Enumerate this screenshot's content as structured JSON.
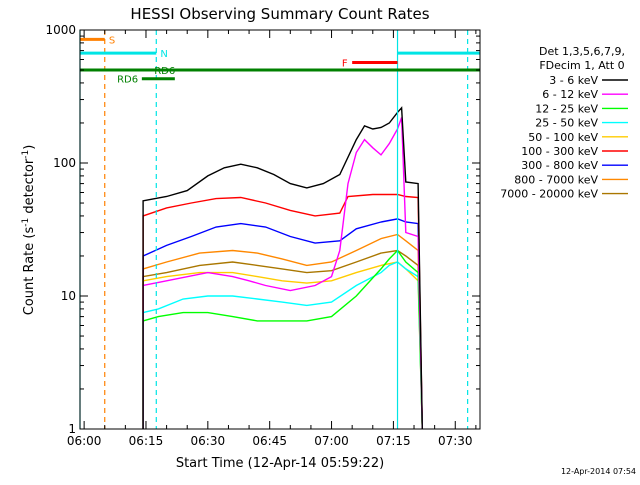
{
  "chart_data": {
    "type": "line",
    "title": "HESSI Observing Summary Count Rates",
    "xlabel": "Start Time (12-Apr-14 05:59:22)",
    "ylabel_main": "Count Rate (s",
    "ylabel_sup1": "-1",
    "ylabel_mid": " detector",
    "ylabel_sup2": "-1",
    "ylabel_end": ")",
    "y_scale": "log",
    "ylim": [
      1,
      1000
    ],
    "y_ticks": [
      1,
      10,
      100,
      1000
    ],
    "y_tick_labels": [
      "1",
      "10",
      "100",
      "1000"
    ],
    "xlim_minutes": [
      -1,
      96
    ],
    "x_ticks": [
      0,
      15,
      30,
      45,
      60,
      75,
      90
    ],
    "x_tick_labels": [
      "06:00",
      "06:15",
      "06:30",
      "06:45",
      "07:00",
      "07:15",
      "07:30"
    ],
    "timestamp": "12-Apr-2014 07:54",
    "legend_header": [
      "Det 1,3,5,6,7,9,",
      "FDecim 1, Att 0"
    ],
    "series": [
      {
        "name": "3 - 6 keV",
        "color": "#000000",
        "points": [
          [
            14.3,
            0
          ],
          [
            14.3,
            52
          ],
          [
            20,
            56
          ],
          [
            25,
            62
          ],
          [
            30,
            80
          ],
          [
            34,
            92
          ],
          [
            38,
            98
          ],
          [
            42,
            92
          ],
          [
            46,
            82
          ],
          [
            50,
            70
          ],
          [
            54,
            65
          ],
          [
            58,
            70
          ],
          [
            62,
            82
          ],
          [
            66,
            150
          ],
          [
            68,
            190
          ],
          [
            70,
            180
          ],
          [
            72,
            185
          ],
          [
            74,
            200
          ],
          [
            76,
            240
          ],
          [
            77,
            260
          ],
          [
            78,
            72
          ],
          [
            81,
            70
          ],
          [
            82,
            0
          ]
        ]
      },
      {
        "name": "6 - 12 keV",
        "color": "#ff00ff",
        "points": [
          [
            14.3,
            0
          ],
          [
            14.3,
            12
          ],
          [
            20,
            13
          ],
          [
            30,
            15
          ],
          [
            36,
            14
          ],
          [
            40,
            13
          ],
          [
            44,
            12
          ],
          [
            50,
            11
          ],
          [
            56,
            12
          ],
          [
            60,
            14
          ],
          [
            62,
            22
          ],
          [
            64,
            70
          ],
          [
            66,
            120
          ],
          [
            68,
            150
          ],
          [
            70,
            130
          ],
          [
            72,
            115
          ],
          [
            74,
            140
          ],
          [
            76,
            180
          ],
          [
            77,
            220
          ],
          [
            78,
            30
          ],
          [
            81,
            28
          ],
          [
            82,
            0
          ]
        ]
      },
      {
        "name": "12 - 25 keV",
        "color": "#00ff00",
        "points": [
          [
            14.3,
            0
          ],
          [
            14.3,
            6.5
          ],
          [
            18,
            7
          ],
          [
            24,
            7.5
          ],
          [
            30,
            7.5
          ],
          [
            36,
            7
          ],
          [
            42,
            6.5
          ],
          [
            48,
            6.5
          ],
          [
            54,
            6.5
          ],
          [
            60,
            7
          ],
          [
            66,
            10
          ],
          [
            72,
            16
          ],
          [
            74,
            19
          ],
          [
            76,
            22
          ],
          [
            78,
            18
          ],
          [
            81,
            15
          ],
          [
            82,
            0
          ]
        ]
      },
      {
        "name": "25 - 50 keV",
        "color": "#00ffff",
        "points": [
          [
            14.3,
            0
          ],
          [
            14.3,
            7.5
          ],
          [
            18,
            8
          ],
          [
            24,
            9.5
          ],
          [
            30,
            10
          ],
          [
            36,
            10
          ],
          [
            42,
            9.5
          ],
          [
            48,
            9
          ],
          [
            54,
            8.5
          ],
          [
            60,
            9
          ],
          [
            66,
            12
          ],
          [
            72,
            15
          ],
          [
            74,
            17
          ],
          [
            76,
            18
          ],
          [
            78,
            16
          ],
          [
            81,
            14
          ],
          [
            82,
            0
          ]
        ]
      },
      {
        "name": "50 - 100 keV",
        "color": "#ffcc00",
        "points": [
          [
            14.3,
            0
          ],
          [
            14.3,
            13
          ],
          [
            20,
            14
          ],
          [
            28,
            15
          ],
          [
            36,
            15
          ],
          [
            42,
            14
          ],
          [
            48,
            13
          ],
          [
            54,
            12.5
          ],
          [
            60,
            13
          ],
          [
            66,
            15
          ],
          [
            72,
            17
          ],
          [
            76,
            18
          ],
          [
            78,
            16
          ],
          [
            81,
            13
          ],
          [
            82,
            0
          ]
        ]
      },
      {
        "name": "100 - 300 keV",
        "color": "#ff0000",
        "points": [
          [
            14.3,
            0
          ],
          [
            14.3,
            40
          ],
          [
            20,
            46
          ],
          [
            26,
            50
          ],
          [
            32,
            54
          ],
          [
            38,
            55
          ],
          [
            44,
            50
          ],
          [
            50,
            44
          ],
          [
            56,
            40
          ],
          [
            62,
            42
          ],
          [
            64,
            56
          ],
          [
            70,
            58
          ],
          [
            76,
            58
          ],
          [
            78,
            56
          ],
          [
            81,
            55
          ],
          [
            82,
            0
          ]
        ]
      },
      {
        "name": "300 - 800 keV",
        "color": "#0000ff",
        "points": [
          [
            14.3,
            0
          ],
          [
            14.3,
            20
          ],
          [
            20,
            24
          ],
          [
            26,
            28
          ],
          [
            32,
            33
          ],
          [
            38,
            35
          ],
          [
            44,
            33
          ],
          [
            50,
            28
          ],
          [
            56,
            25
          ],
          [
            62,
            26
          ],
          [
            66,
            32
          ],
          [
            72,
            36
          ],
          [
            76,
            38
          ],
          [
            78,
            36
          ],
          [
            81,
            35
          ],
          [
            82,
            0
          ]
        ]
      },
      {
        "name": "800 - 7000 keV",
        "color": "#ff8800",
        "points": [
          [
            14.3,
            0
          ],
          [
            14.3,
            16
          ],
          [
            20,
            18
          ],
          [
            28,
            21
          ],
          [
            36,
            22
          ],
          [
            42,
            21
          ],
          [
            48,
            19
          ],
          [
            54,
            17
          ],
          [
            60,
            18
          ],
          [
            66,
            22
          ],
          [
            72,
            27
          ],
          [
            76,
            29
          ],
          [
            78,
            26
          ],
          [
            81,
            22
          ],
          [
            82,
            0
          ]
        ]
      },
      {
        "name": "7000 - 20000 keV",
        "color": "#aa7700",
        "points": [
          [
            14.3,
            0
          ],
          [
            14.3,
            14
          ],
          [
            20,
            15
          ],
          [
            28,
            17
          ],
          [
            36,
            18
          ],
          [
            42,
            17
          ],
          [
            48,
            16
          ],
          [
            54,
            15
          ],
          [
            60,
            15.5
          ],
          [
            66,
            18
          ],
          [
            72,
            21
          ],
          [
            76,
            22
          ],
          [
            78,
            20
          ],
          [
            81,
            17
          ],
          [
            82,
            0
          ]
        ]
      }
    ],
    "flag_lines": [
      {
        "label": "S",
        "color": "#ff8000",
        "y": 850,
        "x_start": -1,
        "x_end": 5,
        "label_x": 6
      },
      {
        "label": "N",
        "color": "#00e5e5",
        "y": 670,
        "x_start": -1,
        "x_end": 17.5,
        "label_x": 18.5
      },
      {
        "label": "N",
        "color": "#00e5e5",
        "y": 670,
        "x_start": 76,
        "x_end": 96,
        "label_x": null
      },
      {
        "label": "F",
        "color": "#ff0000",
        "y": 570,
        "x_start": 65,
        "x_end": 76,
        "label_x": 62.5
      },
      {
        "label": "RD6",
        "color": "#008000",
        "y": 500,
        "x_start": -1,
        "x_end": 96,
        "label_x": 17
      },
      {
        "label": "RD6",
        "color": "#008000",
        "y": 430,
        "x_start": 14,
        "x_end": 22,
        "label_x": 8
      }
    ],
    "vertical_markers": [
      {
        "x": 5,
        "color": "#ff8000",
        "style": "dashed"
      },
      {
        "x": 17.5,
        "color": "#00e5e5",
        "style": "dashed"
      },
      {
        "x": -1,
        "color": "#00e5e5",
        "style": "solid"
      },
      {
        "x": 76,
        "color": "#00e5e5",
        "style": "solid"
      },
      {
        "x": 93,
        "color": "#00e5e5",
        "style": "dashed"
      }
    ]
  }
}
